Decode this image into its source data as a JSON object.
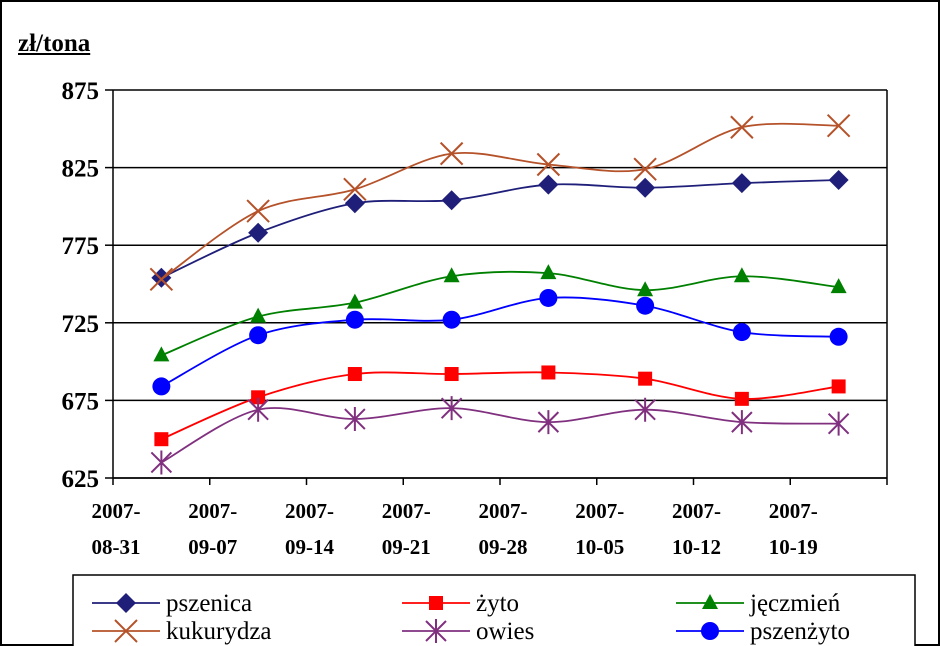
{
  "chart_data": {
    "type": "line",
    "ylabel": "zł/tona",
    "ylim": [
      625,
      875
    ],
    "yticks": [
      "625",
      "675",
      "725",
      "775",
      "825",
      "875"
    ],
    "x": [
      "2007-08-31",
      "2007-09-07",
      "2007-09-14",
      "2007-09-21",
      "2007-09-28",
      "2007-10-05",
      "2007-10-12",
      "2007-10-19"
    ],
    "tick_labels": [
      [
        "2007-",
        "08-31"
      ],
      [
        "2007-",
        "09-07"
      ],
      [
        "2007-",
        "09-14"
      ],
      [
        "2007-",
        "09-21"
      ],
      [
        "2007-",
        "09-28"
      ],
      [
        "2007-",
        "10-05"
      ],
      [
        "2007-",
        "10-12"
      ],
      [
        "2007-",
        "10-19"
      ]
    ],
    "grid": true,
    "legend_position": "bottom",
    "series": [
      {
        "name": "pszenica",
        "color": "#1f1f7a",
        "marker": "diamond",
        "values": [
          754,
          783,
          802,
          804,
          814,
          812,
          815,
          817
        ]
      },
      {
        "name": "żyto",
        "color": "#ff0000",
        "marker": "square",
        "values": [
          650,
          677,
          692,
          692,
          693,
          689,
          676,
          684
        ]
      },
      {
        "name": "jęczmień",
        "color": "#008000",
        "marker": "triangle",
        "values": [
          704,
          729,
          738,
          755,
          757,
          746,
          755,
          748
        ]
      },
      {
        "name": "kukurydza",
        "color": "#b5522a",
        "marker": "x",
        "values": [
          753,
          797,
          811,
          834,
          827,
          824,
          851,
          852
        ]
      },
      {
        "name": "owies",
        "color": "#80307f",
        "marker": "star",
        "values": [
          635,
          669,
          663,
          670,
          661,
          669,
          661,
          660
        ]
      },
      {
        "name": "pszenżyto",
        "color": "#0000ff",
        "marker": "circle",
        "values": [
          684,
          717,
          727,
          727,
          741,
          736,
          719,
          716
        ]
      }
    ]
  }
}
